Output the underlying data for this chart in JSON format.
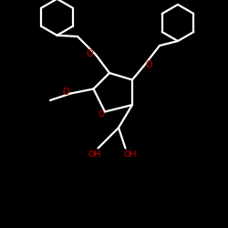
{
  "bg_color": "#000000",
  "bond_color": "#ffffff",
  "oxygen_color": "#cc0000",
  "lw": 1.6,
  "figsize": [
    2.5,
    2.5
  ],
  "dpi": 100,
  "xlim": [
    0,
    10
  ],
  "ylim": [
    0,
    10
  ],
  "hex_r": 0.75,
  "hex_lw": 1.6
}
